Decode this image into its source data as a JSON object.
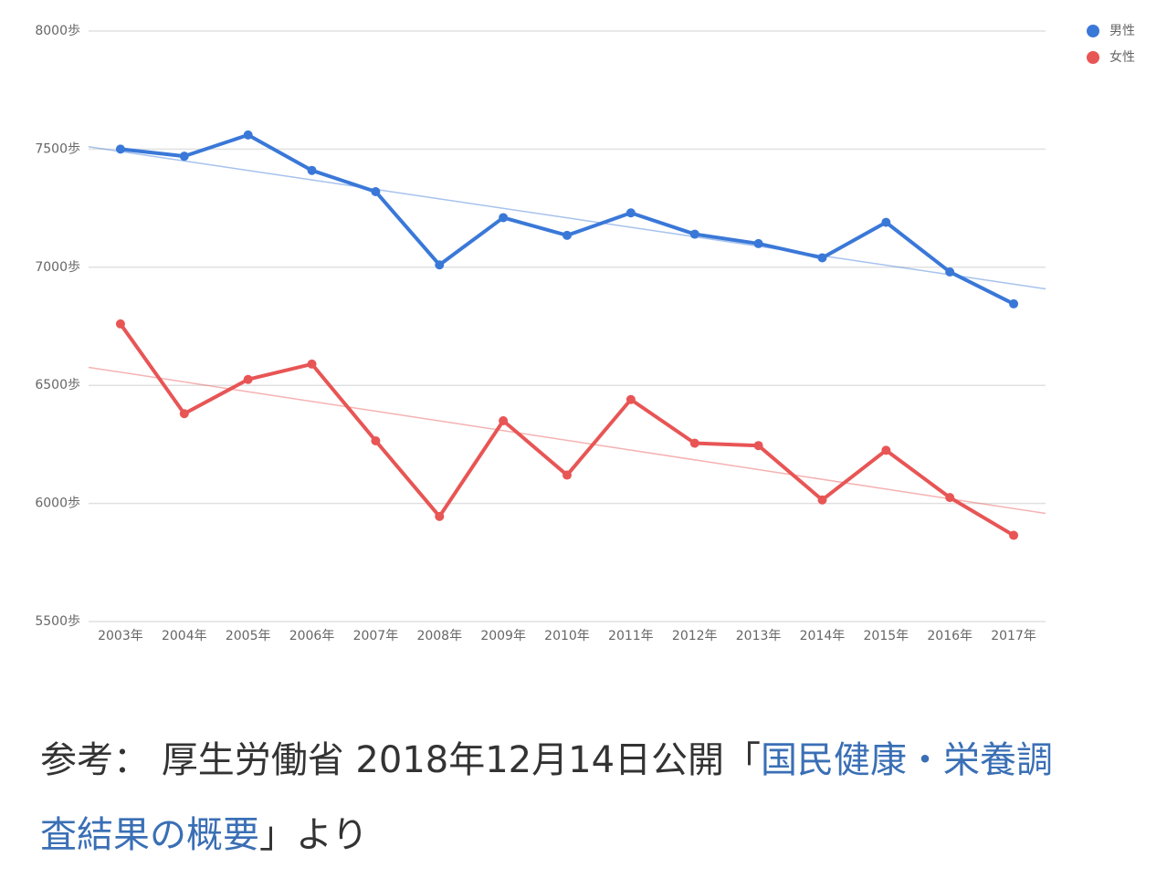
{
  "chart_data": {
    "type": "line",
    "categories": [
      "2003年",
      "2004年",
      "2005年",
      "2006年",
      "2007年",
      "2008年",
      "2009年",
      "2010年",
      "2011年",
      "2012年",
      "2013年",
      "2014年",
      "2015年",
      "2016年",
      "2017年"
    ],
    "series": [
      {
        "name": "男性",
        "color": "#3a78d8",
        "values": [
          7500,
          7470,
          7560,
          7410,
          7320,
          7010,
          7210,
          7135,
          7230,
          7140,
          7100,
          7040,
          7190,
          6980,
          6845
        ]
      },
      {
        "name": "女性",
        "color": "#e85555",
        "values": [
          6760,
          6380,
          6525,
          6590,
          6265,
          5945,
          6350,
          6120,
          6440,
          6255,
          6245,
          6015,
          6225,
          6025,
          5865
        ]
      }
    ],
    "ylim": [
      5500,
      8000
    ],
    "yticks": [
      {
        "value": 5500,
        "label": "5500歩"
      },
      {
        "value": 6000,
        "label": "6000歩"
      },
      {
        "value": 6500,
        "label": "6500歩"
      },
      {
        "value": 7000,
        "label": "7000歩"
      },
      {
        "value": 7500,
        "label": "7500歩"
      },
      {
        "value": 8000,
        "label": "8000歩"
      }
    ],
    "grid": true,
    "trendline": true,
    "legend": "top-right"
  },
  "caption": {
    "prefix": "参考： 厚生労働省 2018年12月14日公開「",
    "link": "国民健康・栄養調査結果の概要",
    "suffix": "」より"
  }
}
